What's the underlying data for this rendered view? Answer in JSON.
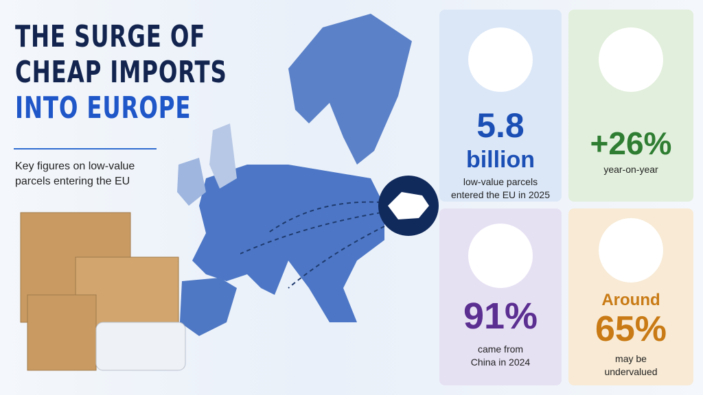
{
  "header": {
    "title_lines": [
      "THE SURGE OF",
      "CHEAP IMPORTS",
      "INTO EUROPE"
    ],
    "subtitle": "Key figures on low-value parcels entering the EU"
  },
  "cards": [
    {
      "value": "5.8",
      "unit": "billion",
      "caption": "low-value parcels entered the EU in 2025"
    },
    {
      "value": "+26%",
      "caption": "year-on-year"
    },
    {
      "value": "91%",
      "caption": "came from China in 2024"
    },
    {
      "prefix": "Around",
      "value": "65%",
      "caption": "may be undervalued"
    }
  ]
}
